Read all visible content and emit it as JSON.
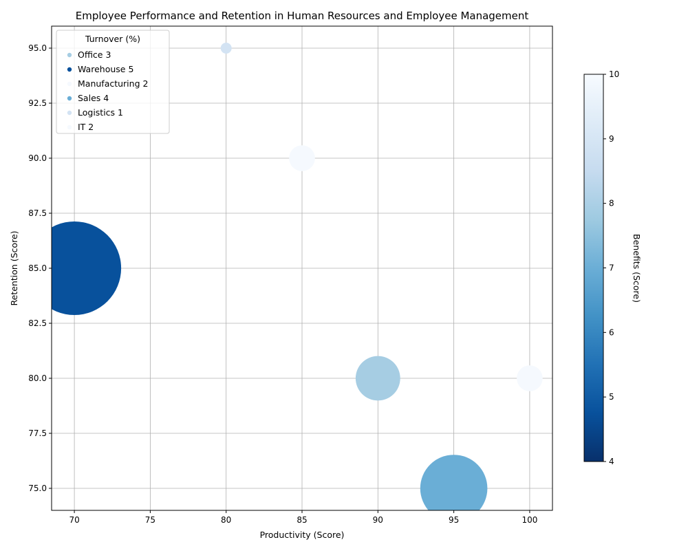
{
  "chart_data": {
    "type": "scatter",
    "title": "Employee Performance and Retention in Human Resources and Employee Management",
    "xlabel": "Productivity (Score)",
    "ylabel": "Retention (Score)",
    "xlim": [
      68.5,
      101.5
    ],
    "ylim": [
      74,
      96
    ],
    "xticks": [
      "70",
      "75",
      "80",
      "85",
      "90",
      "95",
      "100"
    ],
    "yticks": [
      "75.0",
      "77.5",
      "80.0",
      "82.5",
      "85.0",
      "87.5",
      "90.0",
      "92.5",
      "95.0"
    ],
    "grid": true,
    "legend": {
      "title": "Turnover (%)",
      "placement": "top-left",
      "entries": [
        "Office 3",
        "Warehouse 5",
        "Manufacturing 2",
        "Sales 4",
        "Logistics 1",
        "IT 2"
      ]
    },
    "points": [
      {
        "label": "Office 3",
        "productivity": 90,
        "retention": 80,
        "turnover": 3,
        "benefits": 8,
        "color": "#a6cde3"
      },
      {
        "label": "Warehouse 5",
        "productivity": 70,
        "retention": 85,
        "turnover": 5,
        "benefits": 5,
        "color": "#08519c"
      },
      {
        "label": "Manufacturing 2",
        "productivity": 85,
        "retention": 90,
        "turnover": 2,
        "benefits": 10,
        "color": "#f5f9fe"
      },
      {
        "label": "Sales 4",
        "productivity": 95,
        "retention": 75,
        "turnover": 4,
        "benefits": 7,
        "color": "#6aaed6"
      },
      {
        "label": "Logistics 1",
        "productivity": 80,
        "retention": 95,
        "turnover": 1,
        "benefits": 9,
        "color": "#d3e3f3"
      },
      {
        "label": "IT 2",
        "productivity": 100,
        "retention": 80,
        "turnover": 2,
        "benefits": 10,
        "color": "#f5f9fe"
      }
    ],
    "colorbar": {
      "label": "Benefits (Score)",
      "range": [
        4,
        10
      ],
      "ticks": [
        "4",
        "5",
        "6",
        "7",
        "8",
        "9",
        "10"
      ],
      "colors": [
        "#08306b",
        "#08519c",
        "#2171b5",
        "#4292c6",
        "#6baed6",
        "#9ecae1",
        "#c6dbef",
        "#deebf7",
        "#f7fbff"
      ]
    }
  }
}
